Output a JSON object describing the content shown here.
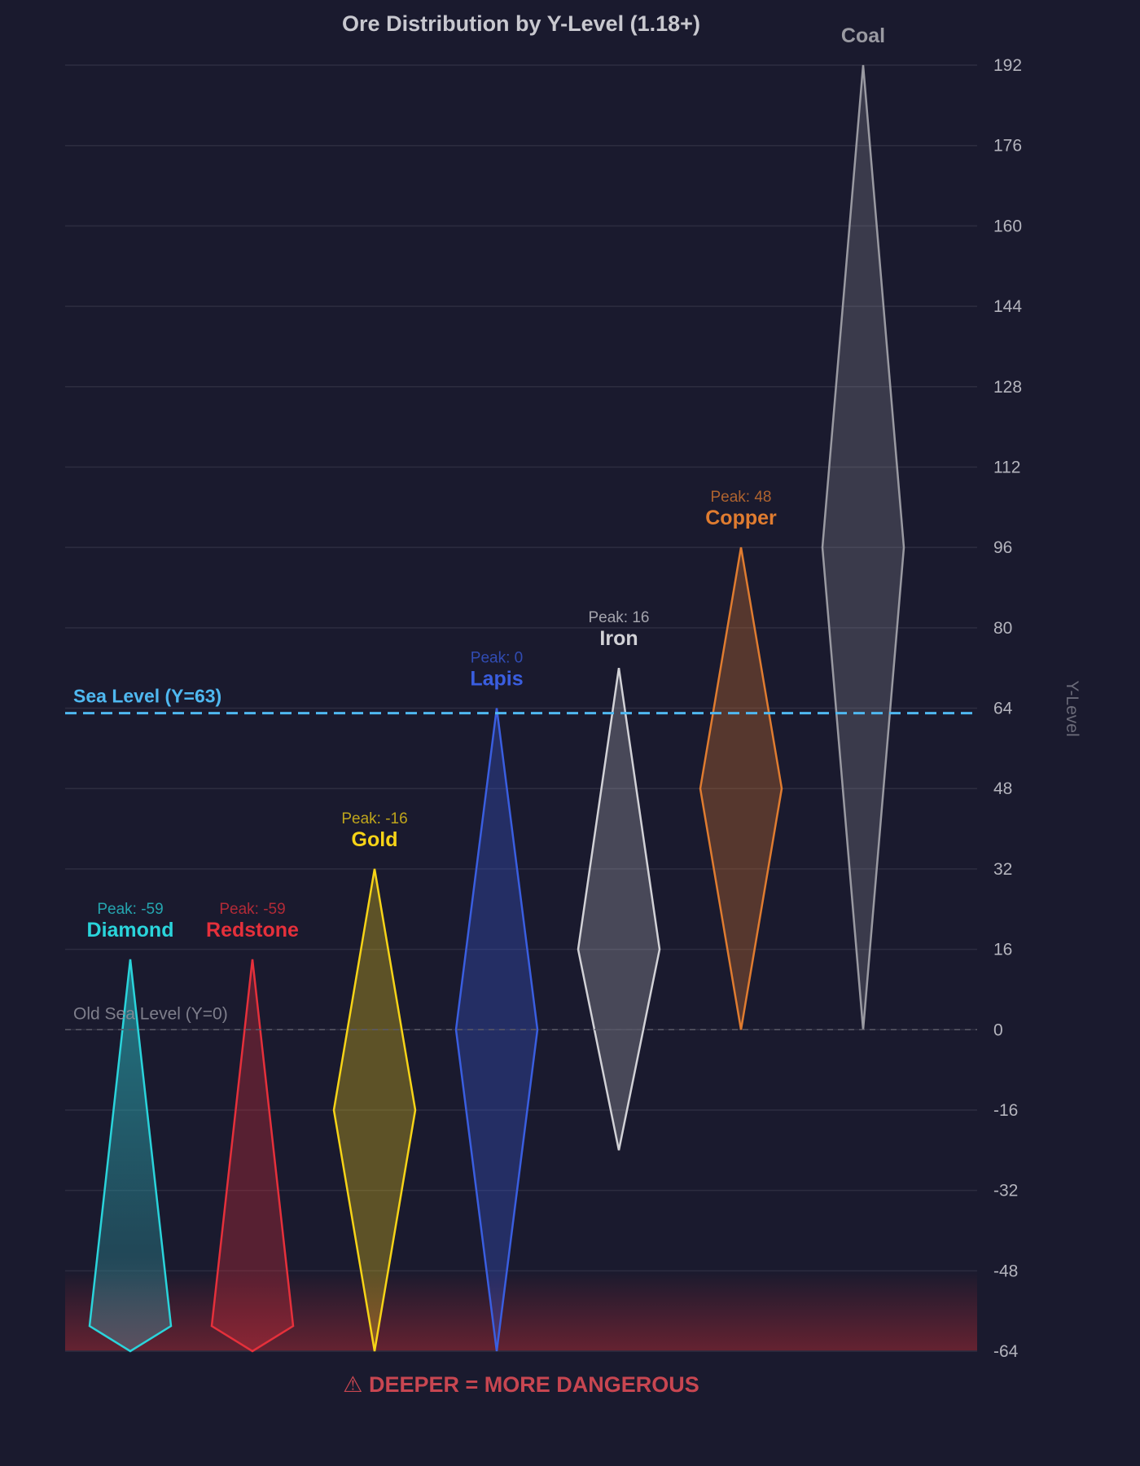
{
  "chart_data": {
    "type": "area",
    "title": "Ore Distribution by Y-Level (1.18+)",
    "ylabel": "Y-Level",
    "ylim": [
      -64,
      192
    ],
    "yticks": [
      192,
      176,
      160,
      144,
      128,
      112,
      96,
      80,
      64,
      48,
      32,
      16,
      0,
      -16,
      -32,
      -48,
      -64
    ],
    "grid": true,
    "series": [
      {
        "name": "Diamond",
        "peak_label": "Peak: -59",
        "min": -64,
        "max": 14,
        "widest_at": -59,
        "color": "#2ad4db",
        "fill_bottom": "#4a5a6a"
      },
      {
        "name": "Redstone",
        "peak_label": "Peak: -59",
        "min": -64,
        "max": 14,
        "widest_at": -59,
        "color": "#e5303b"
      },
      {
        "name": "Gold",
        "peak_label": "Peak: -16",
        "min": -64,
        "max": 32,
        "widest_at": -16,
        "color": "#f7d417"
      },
      {
        "name": "Lapis",
        "peak_label": "Peak: 0",
        "min": -64,
        "max": 64,
        "widest_at": 0,
        "color": "#3a5ee0"
      },
      {
        "name": "Iron",
        "peak_label": "Peak: 16",
        "min": -24,
        "max": 72,
        "widest_at": 16,
        "color": "#d2d2d7"
      },
      {
        "name": "Copper",
        "peak_label": "Peak: 48",
        "min": 0,
        "max": 96,
        "widest_at": 48,
        "color": "#e07c30"
      },
      {
        "name": "Coal",
        "peak_label": "",
        "min": 0,
        "max": 192,
        "widest_at": 96,
        "color": "#9a9aa2"
      }
    ],
    "reference_lines": [
      {
        "label": "Sea Level (Y=63)",
        "y": 63,
        "color": "#4fb8f0"
      },
      {
        "label": "Old Sea Level (Y=0)",
        "y": 0,
        "color": "#5a5a68"
      }
    ],
    "danger_zone": {
      "from": -64,
      "to": -48,
      "color": "#b02a34"
    },
    "annotation": "⚠ DEEPER = MORE DANGEROUS"
  }
}
